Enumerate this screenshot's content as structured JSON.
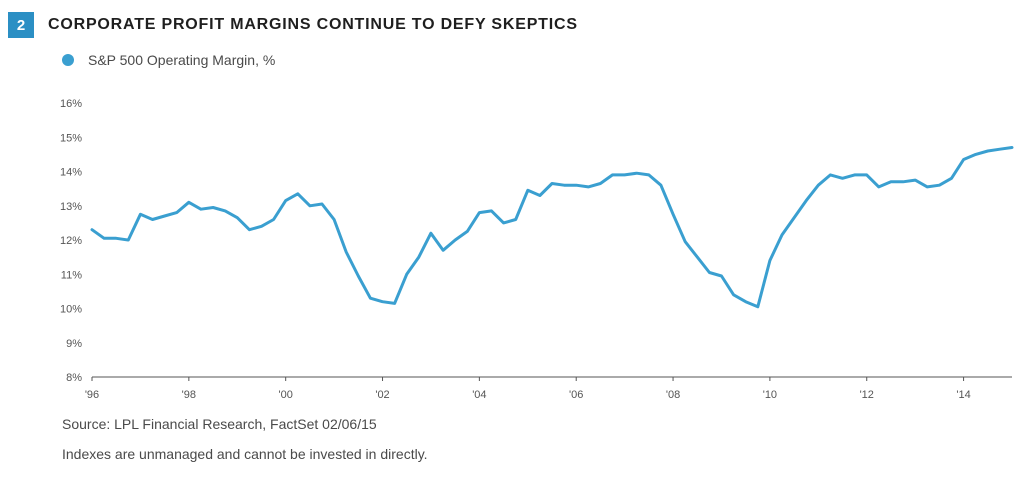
{
  "header": {
    "number": "2",
    "title": "CORPORATE PROFIT MARGINS CONTINUE TO DEFY SKEPTICS"
  },
  "colors": {
    "accent": "#2b8fc4",
    "line": "#3a9fd0"
  },
  "footer": {
    "source": "Source: LPL Financial Research, FactSet 02/06/15",
    "note": "Indexes are unmanaged and cannot be invested in directly."
  },
  "chart_data": {
    "type": "line",
    "title": "",
    "xlabel": "",
    "ylabel": "",
    "xlim": [
      1996,
      2015
    ],
    "ylim": [
      8,
      16
    ],
    "grid": false,
    "legend": "top-left",
    "y_ticks": [
      8,
      9,
      10,
      11,
      12,
      13,
      14,
      15,
      16
    ],
    "y_tick_labels": [
      "8%",
      "9%",
      "10%",
      "11%",
      "12%",
      "13%",
      "14%",
      "15%",
      "16%"
    ],
    "x_ticks": [
      1996,
      1998,
      2000,
      2002,
      2004,
      2006,
      2008,
      2010,
      2012,
      2014
    ],
    "x_tick_labels": [
      "'96",
      "'98",
      "'00",
      "'02",
      "'04",
      "'06",
      "'08",
      "'10",
      "'12",
      "'14"
    ],
    "series": [
      {
        "name": "S&P 500 Operating Margin, %",
        "x": [
          1996,
          1996.25,
          1996.5,
          1996.75,
          1997,
          1997.25,
          1997.5,
          1997.75,
          1998,
          1998.25,
          1998.5,
          1998.75,
          1999,
          1999.25,
          1999.5,
          1999.75,
          2000,
          2000.25,
          2000.5,
          2000.75,
          2001,
          2001.25,
          2001.5,
          2001.75,
          2002,
          2002.25,
          2002.5,
          2002.75,
          2003,
          2003.25,
          2003.5,
          2003.75,
          2004,
          2004.25,
          2004.5,
          2004.75,
          2005,
          2005.25,
          2005.5,
          2005.75,
          2006,
          2006.25,
          2006.5,
          2006.75,
          2007,
          2007.25,
          2007.5,
          2007.75,
          2008,
          2008.25,
          2008.5,
          2008.75,
          2009,
          2009.25,
          2009.5,
          2009.75,
          2010,
          2010.25,
          2010.5,
          2010.75,
          2011,
          2011.25,
          2011.5,
          2011.75,
          2012,
          2012.25,
          2012.5,
          2012.75,
          2013,
          2013.25,
          2013.5,
          2013.75,
          2014,
          2014.25,
          2014.5,
          2014.75,
          2015
        ],
        "values": [
          12.3,
          12.05,
          12.05,
          12.0,
          12.75,
          12.6,
          12.7,
          12.8,
          13.1,
          12.9,
          12.95,
          12.85,
          12.65,
          12.3,
          12.4,
          12.6,
          13.15,
          13.35,
          13.0,
          13.05,
          12.6,
          11.65,
          10.95,
          10.3,
          10.2,
          10.15,
          11.0,
          11.5,
          12.2,
          11.7,
          12.0,
          12.25,
          12.8,
          12.85,
          12.5,
          12.6,
          13.45,
          13.3,
          13.65,
          13.6,
          13.6,
          13.55,
          13.65,
          13.9,
          13.9,
          13.95,
          13.9,
          13.6,
          12.75,
          11.95,
          11.5,
          11.05,
          10.95,
          10.4,
          10.2,
          10.05,
          11.4,
          12.15,
          12.65,
          13.15,
          13.6,
          13.9,
          13.8,
          13.9,
          13.9,
          13.55,
          13.7,
          13.7,
          13.75,
          13.55,
          13.6,
          13.8,
          14.35,
          14.5,
          14.6,
          14.65,
          14.7
        ]
      }
    ]
  }
}
